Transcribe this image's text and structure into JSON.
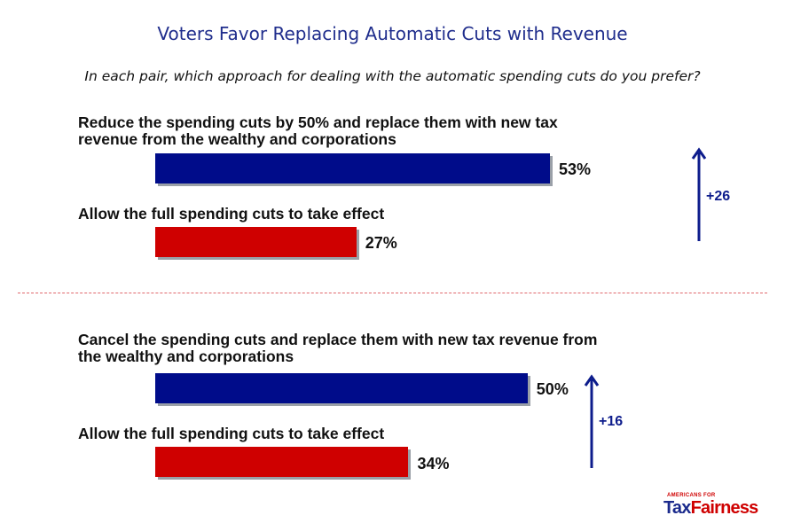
{
  "title": "Voters Favor Replacing Automatic Cuts with Revenue",
  "subtitle": "In each pair, which approach for dealing with the automatic spending cuts do you prefer?",
  "colors": {
    "favor": "#000c8a",
    "oppose": "#cf0000",
    "title": "#1f2d8c",
    "divider": "#e0686c"
  },
  "logo": {
    "small_text": "AMERICANS FOR",
    "tax": "Tax",
    "fairness": "Fairness"
  },
  "chart_data": [
    {
      "type": "bar",
      "orientation": "horizontal",
      "categories": [
        "Reduce the spending cuts by 50% and replace them with new tax revenue from the wealthy and corporations",
        "Allow the full spending cuts to take effect"
      ],
      "values": [
        53,
        27
      ],
      "value_labels": [
        "53%",
        "27%"
      ],
      "difference_label": "+26",
      "xlim": [
        0,
        70
      ]
    },
    {
      "type": "bar",
      "orientation": "horizontal",
      "categories": [
        "Cancel the spending cuts and replace them with new tax revenue from the wealthy and corporations",
        "Allow the full spending cuts to take effect"
      ],
      "values": [
        50,
        34
      ],
      "value_labels": [
        "50%",
        "34%"
      ],
      "difference_label": "+16",
      "xlim": [
        0,
        70
      ]
    }
  ]
}
